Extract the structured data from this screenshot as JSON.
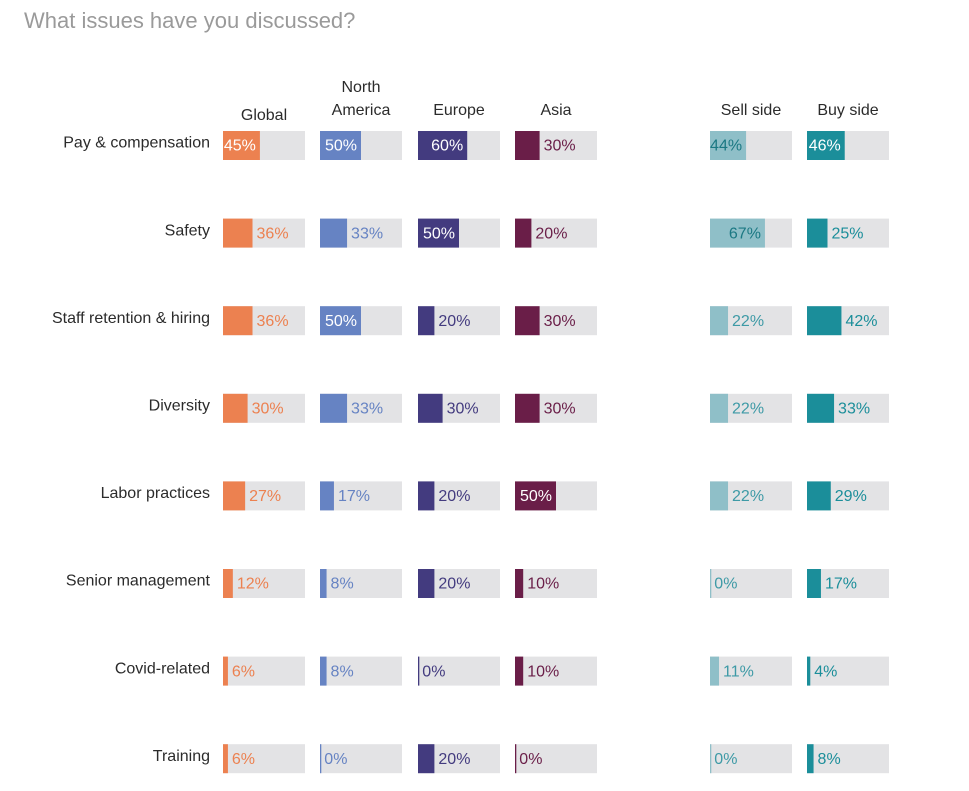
{
  "chart_data": {
    "type": "bar",
    "title": "What issues have you discussed?",
    "categories": [
      "Pay & compensation",
      "Safety",
      "Staff retention & hiring",
      "Diversity",
      "Labor practices",
      "Senior management",
      "Covid-related",
      "Training"
    ],
    "series": [
      {
        "name": "Global",
        "color": "#ec8150",
        "values": [
          45,
          36,
          36,
          30,
          27,
          12,
          6,
          6
        ],
        "labels": [
          "45%",
          "36%",
          "36%",
          "30%",
          "27%",
          "12%",
          "6%",
          "6%"
        ]
      },
      {
        "name": "North America",
        "name_lines": [
          "North",
          "America"
        ],
        "color": "#6683c3",
        "values": [
          50,
          33,
          50,
          33,
          17,
          8,
          8,
          0
        ],
        "labels": [
          "50%",
          "33%",
          "50%",
          "33%",
          "17%",
          "8%",
          "8%",
          "0%"
        ]
      },
      {
        "name": "Europe",
        "color": "#433b7f",
        "values": [
          60,
          50,
          20,
          30,
          20,
          20,
          0,
          20
        ],
        "labels": [
          "60%",
          "50%",
          "20%",
          "30%",
          "20%",
          "20%",
          "0%",
          "20%"
        ]
      },
      {
        "name": "Asia",
        "color": "#6a1e48",
        "values": [
          30,
          20,
          30,
          30,
          50,
          10,
          10,
          0
        ],
        "labels": [
          "30%",
          "20%",
          "30%",
          "30%",
          "50%",
          "10%",
          "10%",
          "0%"
        ]
      },
      {
        "name": "Sell side",
        "color": "#8fbfc8",
        "values": [
          44,
          67,
          22,
          22,
          22,
          0,
          11,
          0
        ],
        "labels": [
          "44%",
          "67%",
          "22%",
          "22%",
          "22%",
          "0%",
          "11%",
          "0%"
        ]
      },
      {
        "name": "Buy side",
        "color": "#1b8e9a",
        "values": [
          46,
          25,
          42,
          33,
          29,
          17,
          4,
          8
        ],
        "labels": [
          "46%",
          "25%",
          "42%",
          "33%",
          "29%",
          "17%",
          "4%",
          "8%"
        ]
      }
    ],
    "ylim": [
      0,
      100
    ],
    "track_color": "#e3e3e5",
    "legend": "none",
    "grid": false
  }
}
